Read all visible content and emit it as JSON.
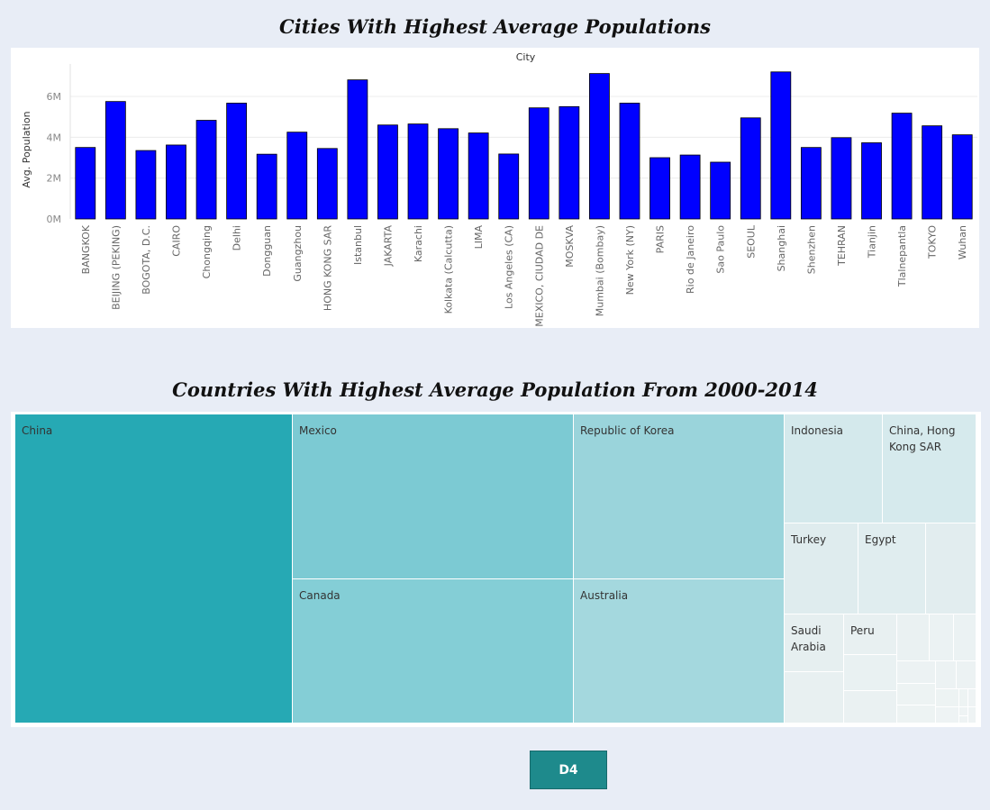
{
  "bar_chart": {
    "title": "Cities With Highest Average Populations"
  },
  "treemap": {
    "title": "Countries With Highest Average Population From 2000-2014",
    "cells": [
      {
        "label": "China",
        "color": "#26a9b4"
      },
      {
        "label": "Mexico",
        "color": "#7ccad3"
      },
      {
        "label": "Canada",
        "color": "#84ced6"
      },
      {
        "label": "Republic of Korea",
        "color": "#9ad4db"
      },
      {
        "label": "Australia",
        "color": "#a4d8de"
      },
      {
        "label": "Indonesia",
        "color": "#d4e9ec"
      },
      {
        "label": "China, Hong Kong SAR",
        "color": "#d6eaed"
      },
      {
        "label": "Turkey",
        "color": "#dfecee"
      },
      {
        "label": "Egypt",
        "color": "#e0edef"
      },
      {
        "label": "",
        "color": "#e2edef"
      },
      {
        "label": "Saudi Arabia",
        "color": "#e6eff0"
      },
      {
        "label": "",
        "color": "#e8f0f1"
      },
      {
        "label": "Peru",
        "color": "#e8f0f1"
      },
      {
        "label": "",
        "color": "#e9f1f2"
      },
      {
        "label": "",
        "color": "#eaf1f2"
      },
      {
        "label": "",
        "color": "#eaf1f2"
      },
      {
        "label": "",
        "color": "#ebf2f3"
      },
      {
        "label": "",
        "color": "#ebf2f3"
      },
      {
        "label": "",
        "color": "#ecf2f3"
      },
      {
        "label": "",
        "color": "#ecf2f3"
      },
      {
        "label": "",
        "color": "#ecf2f3"
      },
      {
        "label": "",
        "color": "#edf3f3"
      },
      {
        "label": "",
        "color": "#edf3f3"
      },
      {
        "label": "",
        "color": "#edf3f3"
      },
      {
        "label": "",
        "color": "#edf3f3"
      },
      {
        "label": "",
        "color": "#eef3f4"
      },
      {
        "label": "",
        "color": "#eef3f4"
      },
      {
        "label": "",
        "color": "#eef3f4"
      },
      {
        "label": "",
        "color": "#eef3f4"
      },
      {
        "label": "",
        "color": "#eef3f4"
      }
    ]
  },
  "tabs": {
    "active_label": "D4",
    "active_color": "#1e8a8c"
  },
  "chart_data": {
    "type": "bar",
    "title": "Cities With Highest Average Populations",
    "column_header": "City",
    "ylabel": "Avg. Population",
    "ylim": [
      0,
      7500000
    ],
    "yticks": [
      0,
      2000000,
      4000000,
      6000000
    ],
    "ytick_labels": [
      "0M",
      "2M",
      "4M",
      "6M"
    ],
    "grid": true,
    "bar_color": "#0000ff",
    "categories": [
      "BANGKOK",
      "BEIJING (PEKING)",
      "BOGOTA, D.C.",
      "CAIRO",
      "Chongqing",
      "Delhi",
      "Dongguan",
      "Guangzhou",
      "HONG KONG SAR",
      "Istanbul",
      "JAKARTA",
      "Karachi",
      "Kolkata (Calcutta)",
      "LIMA",
      "Los Angeles (CA)",
      "MEXICO, CIUDAD DE",
      "MOSKVA",
      "Mumbai (Bombay)",
      "New York (NY)",
      "PARIS",
      "Rio de Janeiro",
      "Sao Paulo",
      "SEOUL",
      "Shanghai",
      "Shenzhen",
      "TEHRAN",
      "Tianjin",
      "Tlalnepantla",
      "TOKYO",
      "Wuhan"
    ],
    "values": [
      3500000,
      5750000,
      3350000,
      3620000,
      4830000,
      5670000,
      3170000,
      4250000,
      3450000,
      6810000,
      4600000,
      4650000,
      4420000,
      4210000,
      3180000,
      5440000,
      5500000,
      7120000,
      5670000,
      3000000,
      3130000,
      2780000,
      4950000,
      7200000,
      3500000,
      3980000,
      3730000,
      5180000,
      4560000,
      4120000
    ]
  }
}
